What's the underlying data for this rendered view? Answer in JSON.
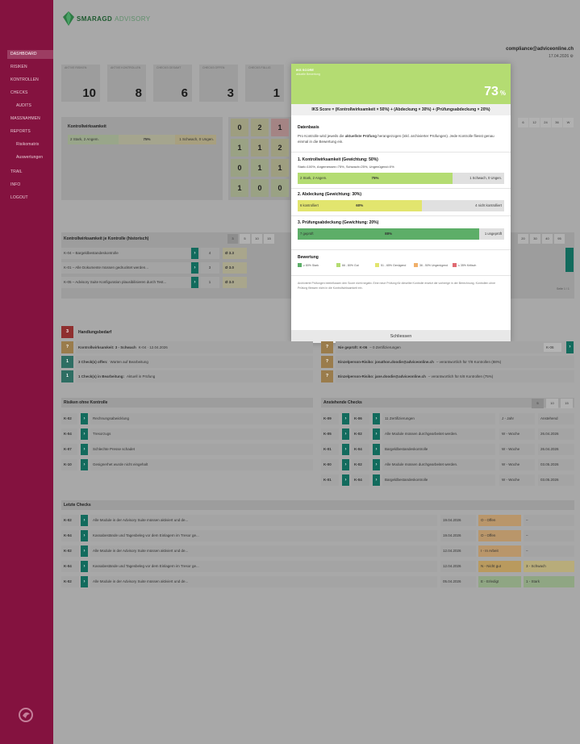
{
  "brand": {
    "name_bold": "SMARAGD",
    "name_light": "ADVISORY"
  },
  "header": {
    "email": "compliance@adviceonline.ch",
    "date": "17.04.2026"
  },
  "nav": [
    {
      "label": "DASHBOARD",
      "active": true,
      "sub": false
    },
    {
      "label": "RISIKEN",
      "sub": false
    },
    {
      "label": "KONTROLLEN",
      "sub": false
    },
    {
      "label": "CHECKS",
      "sub": false
    },
    {
      "label": "AUDITS",
      "sub": true
    },
    {
      "label": "MASSNAHMEN",
      "sub": false
    },
    {
      "label": "REPORTS",
      "sub": false
    },
    {
      "label": "Risikomatrix",
      "sub": true
    },
    {
      "label": "Auswertungen",
      "sub": true
    },
    {
      "label": "TRAIL",
      "sub": false
    },
    {
      "label": "INFO",
      "sub": false
    },
    {
      "label": "LOGOUT",
      "sub": false
    }
  ],
  "kpis": [
    {
      "label": "AKTIVE RISIKEN",
      "value": "10"
    },
    {
      "label": "AKTIVE KONTROLLEN",
      "value": "8"
    },
    {
      "label": "CHECKS GESAMT",
      "value": "6"
    },
    {
      "label": "CHECKS OFFEN",
      "value": "3"
    },
    {
      "label": "CHECKS FÄLLIG",
      "value": "1"
    }
  ],
  "kw_panel": {
    "title": "Kontrollwirksamkeit",
    "left": "2 Stark, 2 Angem.",
    "pct": "75%",
    "right": "1 Schwach, 0 Ungen."
  },
  "matrix": [
    [
      "0",
      "2",
      "1"
    ],
    [
      "1",
      "1",
      "2"
    ],
    [
      "0",
      "1",
      "1"
    ],
    [
      "1",
      "0",
      "0"
    ]
  ],
  "period_buttons": [
    "6",
    "12",
    "24",
    "36",
    "W"
  ],
  "hist": {
    "title": "Kontrollwirksamkeit je Kontrolle (historisch)",
    "buttons": [
      "3",
      "5",
      "10",
      "15"
    ],
    "buttons_right": [
      "20",
      "30",
      "40",
      "95"
    ],
    "rows": [
      {
        "code": "K-04",
        "text": "K-04 – Bargeldbestandeskontrolle",
        "n": "4",
        "avg": "Ø 3.3"
      },
      {
        "code": "K-01",
        "text": "K-01 – Alle Dokumente müssen gedrucktet werden...",
        "n": "3",
        "avg": "Ø 3.0"
      },
      {
        "code": "K-05",
        "text": "K-05 – Advisory Suite Konfiguration plausibilisieren durch Test...",
        "n": "1",
        "avg": "Ø 3.0"
      }
    ],
    "paging": "Seite 1 / 1"
  },
  "handlung": {
    "title": "Handlungsbedarf",
    "count": "3",
    "rows": [
      {
        "num": "?",
        "label": "Kontrollwirksamkeit: 3 - Schwach",
        "rest": "K-04 · 12.04.2026"
      },
      {
        "num": "1",
        "label": "3 Check(s) offen:",
        "rest": "Warten auf Bearbeitung"
      },
      {
        "num": "1",
        "label": "1 Check(s) in Bearbeitung:",
        "rest": "Aktuell in Prüfung"
      }
    ]
  },
  "notices": [
    {
      "num": "?",
      "label": "Nie geprüft: K-06",
      "rest": "– 0 Zertifizierungen",
      "tag": "K-06"
    },
    {
      "num": "?",
      "label": "Einzelperson-Risiko: jonathon.doodie@adviceonline.ch",
      "rest": "– verantwortlich für 7/8 Kontrollen (88%)",
      "tag": ""
    },
    {
      "num": "?",
      "label": "Einzelperson-Risiko: jane.doodie@adviceonline.ch",
      "rest": "– verantwortlich für 6/8 Kontrollen (75%)",
      "tag": ""
    }
  ],
  "risiken": {
    "title": "Risiken ohne Kontrolle",
    "rows": [
      {
        "code": "K-02",
        "text": "Rechnungsabwicklung"
      },
      {
        "code": "K-04",
        "text": "Tresorzugs"
      },
      {
        "code": "K-07",
        "text": "Schlechte Presse schadet"
      },
      {
        "code": "K-10",
        "text": "Gesignerhet wurde nicht eingehalt"
      }
    ]
  },
  "anstehend": {
    "title": "Anstehende Checks",
    "buttons": [
      "5",
      "10",
      "15"
    ],
    "rows": [
      {
        "a": "K-09",
        "b": "K-06",
        "text": "11 Zertifizierungen",
        "freq": "J - Jahr",
        "due": "Anstehend"
      },
      {
        "a": "K-05",
        "b": "K-02",
        "text": "Alle Module müssen durchgearbeitet werden.",
        "freq": "W - Woche",
        "due": "26.04.2026"
      },
      {
        "a": "K-01",
        "b": "K-04",
        "text": "Bargeldbestandeskontrolle",
        "freq": "W - Woche",
        "due": "26.04.2026"
      },
      {
        "a": "K-00",
        "b": "K-02",
        "text": "Alle Module müssen durchgearbeitet werden.",
        "freq": "W - Woche",
        "due": "03.05.2026"
      },
      {
        "a": "K-01",
        "b": "K-04",
        "text": "Bargeldbestandeskontrolle",
        "freq": "W - Woche",
        "due": "03.05.2026"
      }
    ]
  },
  "letzte": {
    "title": "Letzte Checks",
    "rows": [
      {
        "code": "K-02",
        "text": "Alle Module in der Advisory Suite müssen aktiviert und de...",
        "date": "19.04.2026",
        "status": "O - Offen",
        "rating": "–",
        "scolor": "#b9966a",
        "rcolor": "#a4a4a4"
      },
      {
        "code": "K-04",
        "text": "Kassabestände und Tagesbeleg vor dem Einlagern im Tresor ge...",
        "date": "19.04.2026",
        "status": "O - Offen",
        "rating": "–",
        "scolor": "#b9966a",
        "rcolor": "#a4a4a4"
      },
      {
        "code": "K-02",
        "text": "Alle Module in der Advisory Suite müssen aktiviert und de...",
        "date": "12.04.2026",
        "status": "I - In Arbeit",
        "rating": "–",
        "scolor": "#b9966a",
        "rcolor": "#a4a4a4"
      },
      {
        "code": "K-04",
        "text": "Kassabestände und Tagesbeleg vor dem Einlagern im Tresor ge...",
        "date": "12.04.2026",
        "status": "N - Nicht gut",
        "rating": "3 - Schwach",
        "scolor": "#b99a5e",
        "rcolor": "#b8ac7a"
      },
      {
        "code": "K-02",
        "text": "Alle Module in der Advisory Suite müssen aktiviert und de...",
        "date": "05.04.2026",
        "status": "E - Erledigt",
        "rating": "1 - Stark",
        "scolor": "#8fa683",
        "rcolor": "#8fa683"
      }
    ]
  },
  "modal": {
    "kicker": "IKS SCORE",
    "kicker_sub": "aktuelle Bewertung",
    "score": "73",
    "score_unit": "%",
    "formula": "IKS Score = (Kontrollwirksamkeit × 50%) + (Abdeckung × 30%) + (Prüfungsabdeckung × 20%)",
    "basis_title": "Datenbasis",
    "basis_text_1": "Pro Kontrolle wird jeweils die ",
    "basis_text_bold": "aktuellste Prüfung",
    "basis_text_2": " herangezogen (inkl. archivierter Prüfungen). Jede Kontrolle fliesst genau einmal in die Bewertung ein.",
    "sections": [
      {
        "title": "1. Kontrollwirksamkeit (Gewichtung: 50%)",
        "note": "Stark=100%, Angemessen=75%, Schwach=25%, Ungenügend=0%",
        "left": "2 Stark, 2 Angem.",
        "pct": "75%",
        "fill": 75,
        "right": "1 Schwach, 0 Ungen.",
        "color": "#b4dc72"
      },
      {
        "title": "2. Abdeckung (Gewichtung: 30%)",
        "note": "",
        "left": "6 kontrolliert",
        "pct": "60%",
        "fill": 60,
        "right": "4 nicht kontrolliert",
        "color": "#e2e56e"
      },
      {
        "title": "3. Prüfungsabdeckung (Gewichtung: 20%)",
        "note": "",
        "left": "7 geprüft",
        "pct": "88%",
        "fill": 88,
        "right": "1 ungeprüft",
        "color": "#5dae68"
      }
    ],
    "rating_title": "Bewertung",
    "legend": [
      {
        "label": "≥ 80% Stark",
        "color": "#5dae68"
      },
      {
        "label": "66 - 80% Gut",
        "color": "#b4dc72"
      },
      {
        "label": "51 - 65% Genügend",
        "color": "#e2e56e"
      },
      {
        "label": "36 - 50% Ungenügend",
        "color": "#f0b06a"
      },
      {
        "label": "≤ 35% Kritisch",
        "color": "#e06a72"
      }
    ],
    "footnote": "Archivierte Prüfungen beeinflussen den Score nicht negativ. Eine neue Prüfung für dieselbe Kontrolle ersetzt die vorherige in der Berechnung. Kontrollen ohne Prüfung fliessen nicht in die Kontrollwirksamkeit ein.",
    "close_label": "Schliessen"
  }
}
